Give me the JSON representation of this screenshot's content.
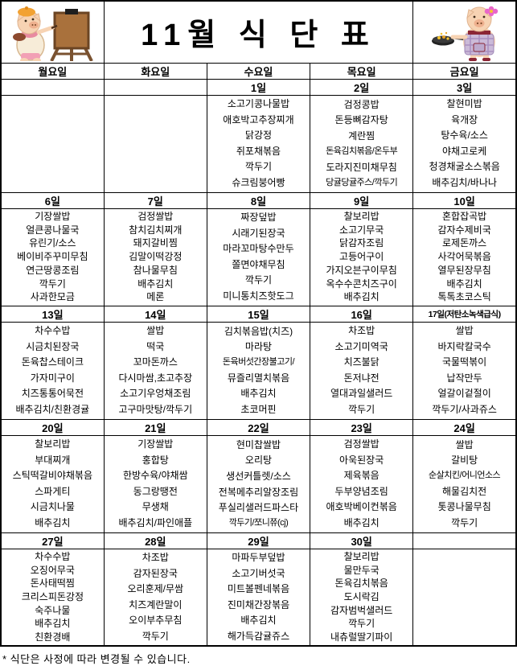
{
  "title": "11월 식 단 표",
  "footer_note": "* 식단은 사정에 따라 변경될 수 있습니다.",
  "icons": {
    "left": "pig-painter-icon",
    "right": "pig-cook-icon"
  },
  "colors": {
    "border": "#000000",
    "background": "#ffffff",
    "text": "#000000",
    "pig_skin": "#f7d3b3",
    "pig_snout": "#eeb08e",
    "beret_orange": "#f2a233",
    "easel_brown": "#a9713c",
    "apron_lavender": "#cbbad8",
    "strap_darkred": "#8b2635",
    "flower_pink": "#e966c9"
  },
  "day_headers": [
    "월요일",
    "화요일",
    "수요일",
    "목요일",
    "금요일"
  ],
  "weeks": [
    {
      "dates": [
        "",
        "",
        "1일",
        "2일",
        "3일"
      ],
      "menus": [
        [],
        [],
        [
          "소고기콩나물밥",
          "애호박고추장찌개",
          "닭강정",
          "쥐포채볶음",
          "깍두기",
          "슈크림붕어빵"
        ],
        [
          "검정콩밥",
          "돈등뼈감자탕",
          "계란찜",
          "돈육김치볶음/온두부",
          "도라지진미채무침",
          "당귤당귤주스/깍두기"
        ],
        [
          "찰현미밥",
          "육개장",
          "탕수육/소스",
          "야채고로케",
          "청경채굴소스볶음",
          "배추김치/바나나"
        ]
      ]
    },
    {
      "dates": [
        "6일",
        "7일",
        "8일",
        "9일",
        "10일"
      ],
      "menus": [
        [
          "기장쌀밥",
          "얼큰콩나물국",
          "유린기/소스",
          "베이비주꾸미무침",
          "연근땅콩조림",
          "깍두기",
          "사과한모금"
        ],
        [
          "검정쌀밥",
          "참치김치찌개",
          "돼지갈비찜",
          "김말이떡강정",
          "참나물무침",
          "배추김치",
          "메론"
        ],
        [
          "짜장덮밥",
          "시래기된장국",
          "마라꼬마탕수만두",
          "쫄면야채무침",
          "깍두기",
          "미니통치즈핫도그"
        ],
        [
          "찰보리밥",
          "소고기무국",
          "닭감자조림",
          "고등어구이",
          "가지오븐구이무침",
          "옥수수콘치즈구이",
          "배추김치"
        ],
        [
          "혼합잡곡밥",
          "감자수제비국",
          "로제돈까스",
          "사각어묵볶음",
          "열무된장무침",
          "배추김치",
          "톡톡초코스틱"
        ]
      ]
    },
    {
      "dates": [
        "13일",
        "14일",
        "15일",
        "16일",
        "17일(저탄소녹색급식)"
      ],
      "menus": [
        [
          "차수수밥",
          "시금치된장국",
          "돈육찹스테이크",
          "가자미구이",
          "치즈통통어묵전",
          "배추김치/친환경귤"
        ],
        [
          "쌀밥",
          "떡국",
          "꼬마돈까스",
          "다시마쌈,초고추장",
          "소고기우엉채조림",
          "고구마맛탕/깍두기"
        ],
        [
          "김치볶음밥(치즈)",
          "마라탕",
          "돈육버섯간장불고기/",
          "뮤즐리멸치볶음",
          "배추김치",
          "초코머핀"
        ],
        [
          "차조밥",
          "소고기미역국",
          "치즈불닭",
          "돈저냐전",
          "열대과일샐러드",
          "깍두기"
        ],
        [
          "쌀밥",
          "바지락칼국수",
          "국물떡볶이",
          "납작만두",
          "얼갈이겉절이",
          "깍두기/사과쥬스"
        ]
      ]
    },
    {
      "dates": [
        "20일",
        "21일",
        "22일",
        "23일",
        "24일"
      ],
      "menus": [
        [
          "찰보리밥",
          "부대찌개",
          "스틱떡갈비야채볶음",
          "스파게티",
          "시금치나물",
          "배추김치"
        ],
        [
          "기장쌀밥",
          "홍합탕",
          "한방수육/야채쌈",
          "동그랑땡전",
          "무생채",
          "배추김치/파인애플"
        ],
        [
          "현미찹쌀밥",
          "오리탕",
          "생선커틀렛/소스",
          "전복메추리알장조림",
          "푸실리샐러드파스타",
          "깍두기/쪼니쮸(cj)"
        ],
        [
          "검정쌀밥",
          "아욱된장국",
          "제육볶음",
          "두부양념조림",
          "애호박베이컨볶음",
          "배추김치"
        ],
        [
          "쌀밥",
          "갈비탕",
          "순살치킨/어니언소스",
          "해물김치전",
          "톳콩나물무침",
          "깍두기"
        ]
      ]
    },
    {
      "dates": [
        "27일",
        "28일",
        "29일",
        "30일",
        ""
      ],
      "menus": [
        [
          "차수수밥",
          "오징어무국",
          "돈사태떡찜",
          "크리스피돈강정",
          "숙주나물",
          "배추김치",
          "친환경배"
        ],
        [
          "차조밥",
          "감자된장국",
          "오리훈제/무쌈",
          "치즈계란말이",
          "오이부추무침",
          "깍두기"
        ],
        [
          "마파두부덮밥",
          "소고기버섯국",
          "미트볼펜네볶음",
          "진미채간장볶음",
          "배추김치",
          "해가득감귤쥬스"
        ],
        [
          "찰보리밥",
          "물만두국",
          "돈육김치볶음",
          "도시락김",
          "감자범벅샐러드",
          "깍두기",
          "내츄럴딸기파이"
        ],
        []
      ]
    }
  ]
}
